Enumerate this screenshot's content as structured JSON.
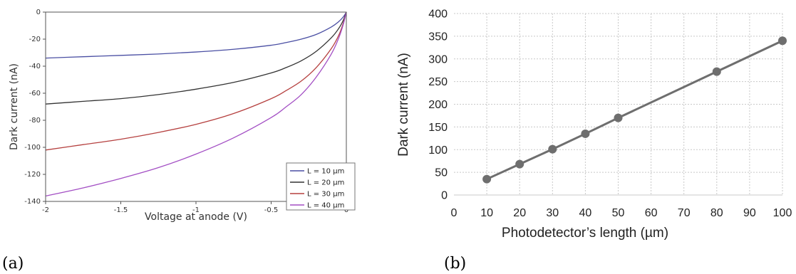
{
  "panels": {
    "a_label": "(a)",
    "b_label": "(b)"
  },
  "chart_data": [
    {
      "type": "line",
      "xlabel": "Voltage at anode (V)",
      "ylabel": "Dark current (nA)",
      "xlim": [
        -2,
        0
      ],
      "ylim": [
        -140,
        0
      ],
      "xticks": [
        -2,
        -1.5,
        -1,
        -0.5,
        0
      ],
      "xtick_labels": [
        "-2",
        "-1.5",
        "-1",
        "-0.5",
        "0"
      ],
      "yticks": [
        0,
        -20,
        -40,
        -60,
        -80,
        -100,
        -120,
        -140
      ],
      "ytick_labels": [
        "0",
        "-20",
        "-40",
        "-60",
        "-80",
        "-100",
        "-120",
        "-140"
      ],
      "grid": false,
      "legend_position": "bottom-right",
      "x": [
        -2.0,
        -1.75,
        -1.5,
        -1.25,
        -1.0,
        -0.75,
        -0.5,
        -0.4,
        -0.3,
        -0.2,
        -0.1,
        -0.05,
        -0.02,
        0.0
      ],
      "series": [
        {
          "name": "L = 10 µm",
          "color": "#4a4fa3",
          "values": [
            -34,
            -33,
            -32,
            -31,
            -29.5,
            -27.5,
            -24.5,
            -22.5,
            -20,
            -16.5,
            -11,
            -7,
            -3.5,
            0
          ]
        },
        {
          "name": "L = 20 µm",
          "color": "#333333",
          "values": [
            -68,
            -66,
            -64,
            -61,
            -57,
            -52,
            -45,
            -41,
            -36,
            -29,
            -19,
            -12,
            -6,
            0
          ]
        },
        {
          "name": "L = 30 µm",
          "color": "#b5403f",
          "values": [
            -102,
            -98,
            -94,
            -89,
            -83,
            -75,
            -64,
            -58,
            -51,
            -41,
            -27,
            -17,
            -8,
            0
          ]
        },
        {
          "name": "L = 40 µm",
          "color": "#a34fc4",
          "values": [
            -136,
            -130,
            -123,
            -115,
            -105,
            -93,
            -78,
            -70,
            -61,
            -48,
            -31,
            -19,
            -9,
            0
          ]
        }
      ]
    },
    {
      "type": "line",
      "xlabel": "Photodetector’s length (µm)",
      "ylabel": "Dark current (nA)",
      "xlim": [
        0,
        100
      ],
      "ylim": [
        0,
        400
      ],
      "xticks": [
        0,
        10,
        20,
        30,
        40,
        50,
        60,
        70,
        80,
        90,
        100
      ],
      "xtick_labels": [
        "0",
        "10",
        "20",
        "30",
        "40",
        "50",
        "60",
        "70",
        "80",
        "90",
        "100"
      ],
      "yticks": [
        0,
        50,
        100,
        150,
        200,
        250,
        300,
        350,
        400
      ],
      "ytick_labels": [
        "0",
        "50",
        "100",
        "150",
        "200",
        "250",
        "300",
        "350",
        "400"
      ],
      "grid": true,
      "series": [
        {
          "color": "#6e6e6e",
          "x": [
            10,
            20,
            30,
            40,
            50,
            80,
            100
          ],
          "values": [
            35,
            68,
            101,
            135,
            170,
            272,
            340
          ]
        }
      ]
    }
  ]
}
